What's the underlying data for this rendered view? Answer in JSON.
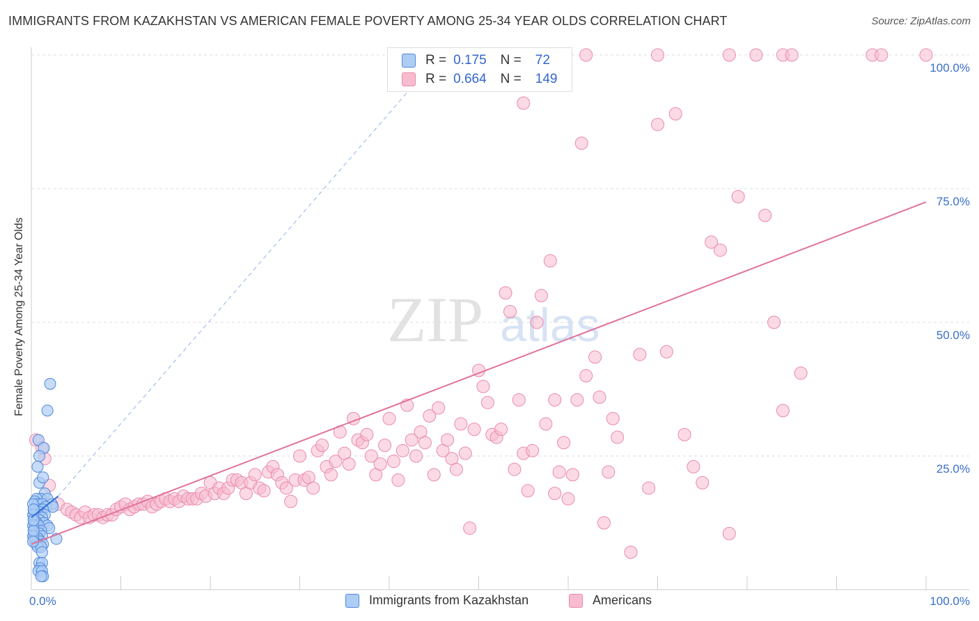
{
  "title": "IMMIGRANTS FROM KAZAKHSTAN VS AMERICAN FEMALE POVERTY AMONG 25-34 YEAR OLDS CORRELATION CHART",
  "source": "Source: ZipAtlas.com",
  "watermark": {
    "zip": "ZIP",
    "atlas": "atlas"
  },
  "legend_top": {
    "rows": [
      {
        "r_label": "R =",
        "r_value": "0.175",
        "n_label": "N =",
        "n_value": "72"
      },
      {
        "r_label": "R =",
        "r_value": "0.664",
        "n_label": "N =",
        "n_value": "149"
      }
    ]
  },
  "colors": {
    "blue_fill": "#aecdf5",
    "blue_stroke": "#4f86db",
    "blue_line": "#2f6fd8",
    "pink_fill": "#f8bccf",
    "pink_stroke": "#e98aa9",
    "pink_line": "#e0729a",
    "axis_label": "#3a6fc9"
  },
  "chart_data": {
    "type": "scatter",
    "title": "IMMIGRANTS FROM KAZAKHSTAN VS AMERICAN FEMALE POVERTY AMONG 25-34 YEAR OLDS CORRELATION CHART",
    "xlabel": "",
    "ylabel": "Female Poverty Among 25-34 Year Olds",
    "xlim": [
      0,
      100
    ],
    "ylim": [
      0,
      100
    ],
    "x_tick_labels": [
      "0.0%",
      "100.0%"
    ],
    "y_tick_labels": [
      "25.0%",
      "50.0%",
      "75.0%",
      "100.0%"
    ],
    "y_ticks": [
      25,
      50,
      75,
      100
    ],
    "grid": true,
    "legend_position": "bottom",
    "series": [
      {
        "name": "Immigrants from Kazakhstan",
        "R": 0.175,
        "N": 72,
        "trend": {
          "x": [
            0,
            3
          ],
          "y": [
            13.5,
            17.5
          ],
          "style": "solid"
        },
        "trend_ext": {
          "x": [
            3,
            42
          ],
          "y": [
            17.5,
            93
          ],
          "style": "dashed"
        },
        "points": [
          [
            2.1,
            38.5
          ],
          [
            1.8,
            33.5
          ],
          [
            0.8,
            28
          ],
          [
            1.4,
            26.5
          ],
          [
            0.9,
            25
          ],
          [
            0.7,
            23
          ],
          [
            0.9,
            20
          ],
          [
            1.3,
            21
          ],
          [
            1.5,
            18
          ],
          [
            1.1,
            17
          ],
          [
            1.8,
            17
          ],
          [
            2.3,
            16
          ],
          [
            0.6,
            17
          ],
          [
            0.4,
            16.5
          ],
          [
            0.7,
            16
          ],
          [
            1.2,
            16
          ],
          [
            1.6,
            15.5
          ],
          [
            2.4,
            15.5
          ],
          [
            0.5,
            15
          ],
          [
            0.9,
            15
          ],
          [
            1.3,
            15
          ],
          [
            0.3,
            14.5
          ],
          [
            0.6,
            14.5
          ],
          [
            1.0,
            14.5
          ],
          [
            1.5,
            14
          ],
          [
            0.4,
            14
          ],
          [
            0.8,
            14
          ],
          [
            0.3,
            13.5
          ],
          [
            0.6,
            13.5
          ],
          [
            1.2,
            13.5
          ],
          [
            0.4,
            13
          ],
          [
            0.9,
            13
          ],
          [
            1.4,
            12.5
          ],
          [
            0.3,
            12.5
          ],
          [
            0.6,
            12.5
          ],
          [
            1.8,
            12
          ],
          [
            0.5,
            12
          ],
          [
            0.8,
            12
          ],
          [
            2.0,
            11.5
          ],
          [
            0.3,
            11.5
          ],
          [
            0.7,
            11
          ],
          [
            1.1,
            11
          ],
          [
            0.4,
            10.5
          ],
          [
            0.9,
            10.5
          ],
          [
            0.3,
            10
          ],
          [
            0.6,
            10
          ],
          [
            1.2,
            10
          ],
          [
            0.5,
            9.5
          ],
          [
            0.8,
            9.5
          ],
          [
            2.8,
            9.5
          ],
          [
            0.4,
            9
          ],
          [
            1.0,
            9
          ],
          [
            0.6,
            8.5
          ],
          [
            1.3,
            8.5
          ],
          [
            0.7,
            8
          ],
          [
            1.1,
            8
          ],
          [
            1.2,
            7
          ],
          [
            0.9,
            5
          ],
          [
            1.2,
            5
          ],
          [
            1.0,
            4
          ],
          [
            0.8,
            3.5
          ],
          [
            1.2,
            3.5
          ],
          [
            1.3,
            2.5
          ],
          [
            1.1,
            2.5
          ],
          [
            0.2,
            16
          ],
          [
            0.2,
            14
          ],
          [
            0.2,
            12
          ],
          [
            0.2,
            10
          ],
          [
            0.25,
            15
          ],
          [
            0.25,
            11
          ],
          [
            0.25,
            13
          ],
          [
            0.2,
            9
          ]
        ]
      },
      {
        "name": "Americans",
        "R": 0.664,
        "N": 149,
        "trend": {
          "x": [
            0,
            100
          ],
          "y": [
            8.5,
            72.5
          ],
          "style": "solid"
        },
        "points": [
          [
            0.5,
            28
          ],
          [
            1.2,
            26.5
          ],
          [
            1.5,
            24.5
          ],
          [
            2,
            19.5
          ],
          [
            3,
            16
          ],
          [
            4,
            15
          ],
          [
            4.5,
            14.5
          ],
          [
            5,
            14
          ],
          [
            5.5,
            13.5
          ],
          [
            6,
            14.5
          ],
          [
            6.5,
            13.5
          ],
          [
            7,
            14
          ],
          [
            7.5,
            14
          ],
          [
            8,
            13.5
          ],
          [
            8.5,
            14
          ],
          [
            9,
            14
          ],
          [
            9.5,
            15
          ],
          [
            10,
            15.5
          ],
          [
            10.5,
            16
          ],
          [
            11,
            15
          ],
          [
            11.5,
            15.5
          ],
          [
            12,
            16
          ],
          [
            12.5,
            16
          ],
          [
            13,
            16.5
          ],
          [
            13.5,
            15.5
          ],
          [
            14,
            16
          ],
          [
            14.5,
            16.5
          ],
          [
            15,
            17
          ],
          [
            15.5,
            16.5
          ],
          [
            16,
            17
          ],
          [
            16.5,
            16.5
          ],
          [
            17,
            17.5
          ],
          [
            17.5,
            17
          ],
          [
            18,
            17
          ],
          [
            18.5,
            17
          ],
          [
            19,
            18
          ],
          [
            19.5,
            17.5
          ],
          [
            20,
            20
          ],
          [
            20.5,
            18
          ],
          [
            21,
            19
          ],
          [
            21.5,
            18
          ],
          [
            22,
            19
          ],
          [
            22.5,
            20.5
          ],
          [
            23,
            20.5
          ],
          [
            23.5,
            20
          ],
          [
            24,
            18
          ],
          [
            24.5,
            20
          ],
          [
            25,
            21.5
          ],
          [
            25.5,
            19
          ],
          [
            26,
            18.5
          ],
          [
            26.5,
            22
          ],
          [
            27,
            23
          ],
          [
            27.5,
            21.5
          ],
          [
            28,
            20
          ],
          [
            28.5,
            19
          ],
          [
            29,
            16.5
          ],
          [
            29.5,
            20.5
          ],
          [
            30,
            25
          ],
          [
            30.5,
            20.5
          ],
          [
            31,
            21
          ],
          [
            31.5,
            19
          ],
          [
            32,
            26
          ],
          [
            32.5,
            27
          ],
          [
            33,
            23
          ],
          [
            33.5,
            21.5
          ],
          [
            34,
            24
          ],
          [
            34.5,
            29.5
          ],
          [
            35,
            25.5
          ],
          [
            35.5,
            23.5
          ],
          [
            36,
            32
          ],
          [
            36.5,
            28
          ],
          [
            37,
            27.5
          ],
          [
            37.5,
            29
          ],
          [
            38,
            25
          ],
          [
            38.5,
            21.5
          ],
          [
            39,
            23.5
          ],
          [
            39.5,
            27
          ],
          [
            40,
            32
          ],
          [
            40.5,
            24
          ],
          [
            41,
            20.5
          ],
          [
            41.5,
            26
          ],
          [
            42,
            34.5
          ],
          [
            42.5,
            28
          ],
          [
            43,
            25
          ],
          [
            43.5,
            29.5
          ],
          [
            44,
            27.5
          ],
          [
            44.5,
            32.5
          ],
          [
            45,
            21.5
          ],
          [
            45.5,
            34
          ],
          [
            46,
            26
          ],
          [
            46.5,
            28
          ],
          [
            47,
            24.5
          ],
          [
            47.5,
            22.5
          ],
          [
            48,
            31
          ],
          [
            48.5,
            25.5
          ],
          [
            49,
            11.5
          ],
          [
            49.5,
            30
          ],
          [
            50,
            41
          ],
          [
            50.5,
            38
          ],
          [
            51,
            35
          ],
          [
            51.5,
            29
          ],
          [
            52,
            28.5
          ],
          [
            52.5,
            30
          ],
          [
            53,
            55.5
          ],
          [
            53.5,
            52
          ],
          [
            54,
            22.5
          ],
          [
            54.5,
            35.5
          ],
          [
            55,
            25.5
          ],
          [
            55.5,
            18.5
          ],
          [
            56,
            26
          ],
          [
            56.5,
            50
          ],
          [
            57,
            55
          ],
          [
            57.5,
            31
          ],
          [
            58,
            61.5
          ],
          [
            58.5,
            18
          ],
          [
            58.5,
            35.5
          ],
          [
            59,
            22
          ],
          [
            59.5,
            27.5
          ],
          [
            60,
            17
          ],
          [
            60.5,
            21.5
          ],
          [
            61,
            35.5
          ],
          [
            61.5,
            83.5
          ],
          [
            62,
            40
          ],
          [
            63,
            43.5
          ],
          [
            63.5,
            36
          ],
          [
            64,
            12.5
          ],
          [
            64.5,
            22
          ],
          [
            65,
            32
          ],
          [
            65.5,
            28.5
          ],
          [
            67,
            7
          ],
          [
            68,
            44
          ],
          [
            69,
            19
          ],
          [
            70,
            87
          ],
          [
            71,
            44.5
          ],
          [
            72,
            89
          ],
          [
            73,
            29
          ],
          [
            74,
            23
          ],
          [
            75,
            20
          ],
          [
            76,
            65
          ],
          [
            77,
            63.5
          ],
          [
            78,
            10.5
          ],
          [
            79,
            73.5
          ],
          [
            82,
            70
          ],
          [
            83,
            50
          ],
          [
            84,
            33.5
          ],
          [
            86,
            40.5
          ],
          [
            54,
            97
          ],
          [
            55,
            91
          ],
          [
            62,
            100
          ],
          [
            70,
            100
          ],
          [
            78,
            100
          ],
          [
            81,
            100
          ],
          [
            84,
            100
          ],
          [
            85,
            100
          ],
          [
            94,
            100
          ],
          [
            95,
            100
          ],
          [
            100,
            100
          ]
        ]
      }
    ]
  },
  "legend_bottom": [
    {
      "label": "Immigrants from Kazakhstan"
    },
    {
      "label": "Americans"
    }
  ]
}
